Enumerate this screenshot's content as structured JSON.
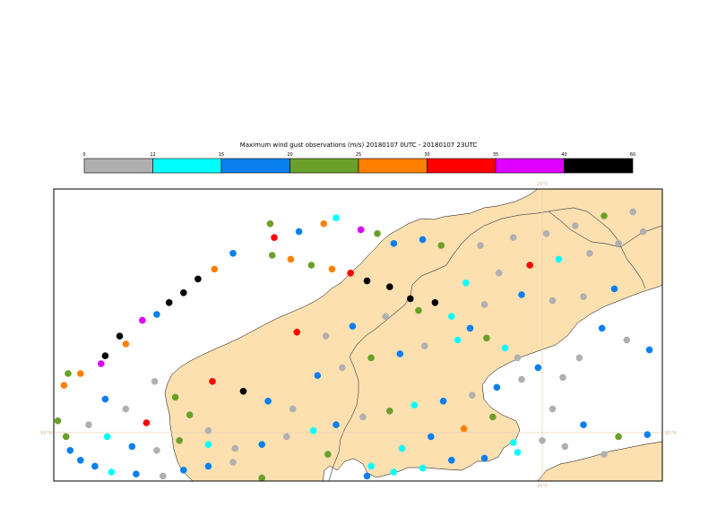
{
  "title": "Maximum wind gust observations (m/s) 20180107 0UTC - 20180107 23UTC",
  "legend": {
    "boundaries": [
      "0",
      "12",
      "15",
      "20",
      "25",
      "30",
      "35",
      "40",
      "60"
    ],
    "colors": [
      "#b0b0b0",
      "#00ffff",
      "#0a7ff0",
      "#6aa02a",
      "#ff8000",
      "#ff0000",
      "#dd00ff",
      "#000000"
    ]
  },
  "map": {
    "land_color": "#fce0b0",
    "sea_color": "#ffffff",
    "border_color": "#555555",
    "gridline_color": "#e8d2b4",
    "lon_label": "20°E",
    "lat_label": "60°N"
  },
  "stations": [
    {
      "lon": 6.8,
      "lat": 70.6,
      "v": 24
    },
    {
      "lon": 7.0,
      "lat": 69.9,
      "v": 30
    },
    {
      "lon": 8.2,
      "lat": 70.2,
      "v": 16
    },
    {
      "lon": 9.4,
      "lat": 70.6,
      "v": 27
    },
    {
      "lon": 10.0,
      "lat": 70.9,
      "v": 14
    },
    {
      "lon": 11.2,
      "lat": 70.3,
      "v": 38
    },
    {
      "lon": 12.0,
      "lat": 70.1,
      "v": 22
    },
    {
      "lon": 12.8,
      "lat": 69.6,
      "v": 16
    },
    {
      "lon": 14.2,
      "lat": 69.8,
      "v": 16
    },
    {
      "lon": 15.1,
      "lat": 69.5,
      "v": 22
    },
    {
      "lon": 6.9,
      "lat": 69.0,
      "v": 22
    },
    {
      "lon": 7.8,
      "lat": 68.8,
      "v": 26
    },
    {
      "lon": 8.8,
      "lat": 68.5,
      "v": 24
    },
    {
      "lon": 9.8,
      "lat": 68.3,
      "v": 28
    },
    {
      "lon": 10.7,
      "lat": 68.1,
      "v": 30
    },
    {
      "lon": 11.5,
      "lat": 67.7,
      "v": 45
    },
    {
      "lon": 12.6,
      "lat": 67.4,
      "v": 45
    },
    {
      "lon": 13.6,
      "lat": 66.8,
      "v": 50
    },
    {
      "lon": 14.8,
      "lat": 66.6,
      "v": 40
    },
    {
      "lon": 15.6,
      "lat": 65.9,
      "v": 12
    },
    {
      "lon": 16.5,
      "lat": 65.3,
      "v": 16
    },
    {
      "lon": 17.3,
      "lat": 64.8,
      "v": 22
    },
    {
      "lon": 18.2,
      "lat": 64.3,
      "v": 13
    },
    {
      "lon": 18.8,
      "lat": 63.8,
      "v": 6
    },
    {
      "lon": 19.8,
      "lat": 63.3,
      "v": 16
    },
    {
      "lon": 21.0,
      "lat": 62.8,
      "v": 6
    },
    {
      "lon": 5.0,
      "lat": 69.1,
      "v": 16
    },
    {
      "lon": 4.1,
      "lat": 68.3,
      "v": 28
    },
    {
      "lon": 3.3,
      "lat": 67.8,
      "v": 42
    },
    {
      "lon": 2.6,
      "lat": 67.1,
      "v": 44
    },
    {
      "lon": 1.9,
      "lat": 66.6,
      "v": 50
    },
    {
      "lon": 1.3,
      "lat": 66.0,
      "v": 18
    },
    {
      "lon": 0.6,
      "lat": 65.7,
      "v": 35
    },
    {
      "lon": -0.5,
      "lat": 64.9,
      "v": 41
    },
    {
      "lon": -0.2,
      "lat": 64.5,
      "v": 28
    },
    {
      "lon": -1.2,
      "lat": 63.9,
      "v": 40
    },
    {
      "lon": -1.4,
      "lat": 63.5,
      "v": 39
    },
    {
      "lon": -2.4,
      "lat": 63.0,
      "v": 26
    },
    {
      "lon": -3.2,
      "lat": 62.4,
      "v": 29
    },
    {
      "lon": -3.7,
      "lat": 61.9,
      "v": 22
    },
    {
      "lon": -3.9,
      "lat": 61.4,
      "v": 26
    },
    {
      "lon": -3.5,
      "lat": 60.6,
      "v": 22
    },
    {
      "lon": -3.1,
      "lat": 59.8,
      "v": 24
    },
    {
      "lon": -2.9,
      "lat": 59.1,
      "v": 16
    },
    {
      "lon": -2.4,
      "lat": 58.6,
      "v": 16
    },
    {
      "lon": -1.7,
      "lat": 58.3,
      "v": 17
    },
    {
      "lon": -0.9,
      "lat": 58.0,
      "v": 12
    },
    {
      "lon": 0.3,
      "lat": 57.9,
      "v": 16
    },
    {
      "lon": 1.6,
      "lat": 57.8,
      "v": 6
    },
    {
      "lon": 2.6,
      "lat": 58.1,
      "v": 17
    },
    {
      "lon": 3.8,
      "lat": 58.3,
      "v": 16
    },
    {
      "lon": 5.0,
      "lat": 58.5,
      "v": 6
    },
    {
      "lon": 6.4,
      "lat": 57.7,
      "v": 24
    },
    {
      "lon": 7.6,
      "lat": 57.4,
      "v": 22
    },
    {
      "lon": 9.0,
      "lat": 57.4,
      "v": 14
    },
    {
      "lon": 10.3,
      "lat": 57.5,
      "v": 13
    },
    {
      "lon": 11.5,
      "lat": 57.8,
      "v": 16
    },
    {
      "lon": 12.8,
      "lat": 58.0,
      "v": 14
    },
    {
      "lon": 14.2,
      "lat": 58.2,
      "v": 13
    },
    {
      "lon": 15.6,
      "lat": 58.6,
      "v": 17
    },
    {
      "lon": 17.2,
      "lat": 58.7,
      "v": 16
    },
    {
      "lon": 18.8,
      "lat": 59.0,
      "v": 13
    },
    {
      "lon": 20.0,
      "lat": 59.6,
      "v": 6
    },
    {
      "lon": 1.2,
      "lat": 62.6,
      "v": 6
    },
    {
      "lon": 2.2,
      "lat": 61.8,
      "v": 22
    },
    {
      "lon": 2.9,
      "lat": 60.9,
      "v": 24
    },
    {
      "lon": 3.8,
      "lat": 60.1,
      "v": 6
    },
    {
      "lon": -1.2,
      "lat": 61.7,
      "v": 16
    },
    {
      "lon": -0.2,
      "lat": 61.2,
      "v": 6
    },
    {
      "lon": 0.8,
      "lat": 60.5,
      "v": 32
    },
    {
      "lon": -2.0,
      "lat": 60.4,
      "v": 6
    },
    {
      "lon": -1.1,
      "lat": 59.8,
      "v": 13
    },
    {
      "lon": 0.1,
      "lat": 59.3,
      "v": 17
    },
    {
      "lon": 1.3,
      "lat": 59.1,
      "v": 6
    },
    {
      "lon": 2.4,
      "lat": 59.6,
      "v": 22
    },
    {
      "lon": 3.8,
      "lat": 59.4,
      "v": 14
    },
    {
      "lon": 5.1,
      "lat": 59.2,
      "v": 6
    },
    {
      "lon": 6.4,
      "lat": 59.4,
      "v": 16
    },
    {
      "lon": 7.6,
      "lat": 59.8,
      "v": 6
    },
    {
      "lon": 8.9,
      "lat": 60.1,
      "v": 13
    },
    {
      "lon": 10.0,
      "lat": 60.4,
      "v": 16
    },
    {
      "lon": 11.3,
      "lat": 60.8,
      "v": 6
    },
    {
      "lon": 12.6,
      "lat": 61.1,
      "v": 22
    },
    {
      "lon": 13.8,
      "lat": 61.4,
      "v": 13
    },
    {
      "lon": 15.2,
      "lat": 61.6,
      "v": 16
    },
    {
      "lon": 16.6,
      "lat": 61.9,
      "v": 6
    },
    {
      "lon": 17.8,
      "lat": 62.3,
      "v": 16
    },
    {
      "lon": 19.0,
      "lat": 62.7,
      "v": 6
    },
    {
      "lon": 4.0,
      "lat": 62.6,
      "v": 33
    },
    {
      "lon": 5.5,
      "lat": 62.1,
      "v": 50
    },
    {
      "lon": 6.7,
      "lat": 61.6,
      "v": 16
    },
    {
      "lon": 7.9,
      "lat": 61.2,
      "v": 6
    },
    {
      "lon": 9.1,
      "lat": 62.9,
      "v": 16
    },
    {
      "lon": 10.3,
      "lat": 63.3,
      "v": 6
    },
    {
      "lon": 11.7,
      "lat": 63.8,
      "v": 22
    },
    {
      "lon": 13.1,
      "lat": 64.0,
      "v": 16
    },
    {
      "lon": 14.3,
      "lat": 64.4,
      "v": 6
    },
    {
      "lon": 15.9,
      "lat": 64.7,
      "v": 13
    },
    {
      "lon": 8.1,
      "lat": 65.1,
      "v": 31
    },
    {
      "lon": 9.5,
      "lat": 64.9,
      "v": 6
    },
    {
      "lon": 10.8,
      "lat": 65.4,
      "v": 16
    },
    {
      "lon": 12.4,
      "lat": 65.9,
      "v": 6
    },
    {
      "lon": 14.0,
      "lat": 66.2,
      "v": 22
    },
    {
      "lon": 17.2,
      "lat": 66.5,
      "v": 6
    },
    {
      "lon": 19.0,
      "lat": 67.0,
      "v": 16
    },
    {
      "lon": 20.5,
      "lat": 66.7,
      "v": 6
    },
    {
      "lon": 22.0,
      "lat": 66.9,
      "v": 6
    },
    {
      "lon": 23.5,
      "lat": 67.3,
      "v": 16
    },
    {
      "lon": 16.3,
      "lat": 67.6,
      "v": 13
    },
    {
      "lon": 17.9,
      "lat": 68.1,
      "v": 6
    },
    {
      "lon": 19.4,
      "lat": 68.5,
      "v": 31
    },
    {
      "lon": 20.8,
      "lat": 68.8,
      "v": 13
    },
    {
      "lon": 22.3,
      "lat": 69.1,
      "v": 6
    },
    {
      "lon": 23.7,
      "lat": 69.6,
      "v": 6
    },
    {
      "lon": 24.9,
      "lat": 70.2,
      "v": 6
    },
    {
      "lon": 17.0,
      "lat": 69.5,
      "v": 6
    },
    {
      "lon": 18.6,
      "lat": 69.9,
      "v": 6
    },
    {
      "lon": 20.2,
      "lat": 70.1,
      "v": 6
    },
    {
      "lon": 21.6,
      "lat": 70.5,
      "v": 6
    },
    {
      "lon": 23.0,
      "lat": 71.0,
      "v": 22
    },
    {
      "lon": 24.4,
      "lat": 71.2,
      "v": 6
    },
    {
      "lon": 25.8,
      "lat": 71.6,
      "v": 6
    },
    {
      "lon": 22.9,
      "lat": 65.3,
      "v": 16
    },
    {
      "lon": 24.1,
      "lat": 64.7,
      "v": 6
    },
    {
      "lon": 25.2,
      "lat": 64.2,
      "v": 16
    },
    {
      "lon": 21.8,
      "lat": 63.8,
      "v": 6
    },
    {
      "lon": 20.5,
      "lat": 61.2,
      "v": 6
    },
    {
      "lon": 22.0,
      "lat": 60.4,
      "v": 16
    },
    {
      "lon": 23.7,
      "lat": 59.8,
      "v": 22
    },
    {
      "lon": 25.1,
      "lat": 59.9,
      "v": 16
    },
    {
      "lon": 26.2,
      "lat": 60.2,
      "v": 28
    },
    {
      "lon": 21.1,
      "lat": 59.3,
      "v": 6
    },
    {
      "lon": 23.0,
      "lat": 58.9,
      "v": 6
    },
    {
      "lon": 13.2,
      "lat": 59.2,
      "v": 14
    },
    {
      "lon": 14.6,
      "lat": 59.8,
      "v": 16
    },
    {
      "lon": 16.2,
      "lat": 60.2,
      "v": 28
    },
    {
      "lon": 17.6,
      "lat": 60.8,
      "v": 22
    },
    {
      "lon": 18.6,
      "lat": 59.5,
      "v": 14
    },
    {
      "lon": 11.7,
      "lat": 58.3,
      "v": 14
    },
    {
      "lon": 9.6,
      "lat": 58.9,
      "v": 22
    },
    {
      "lon": -8.8,
      "lat": 61.2,
      "v": 22
    },
    {
      "lon": -3.0,
      "lat": 63.0,
      "v": 23
    }
  ]
}
